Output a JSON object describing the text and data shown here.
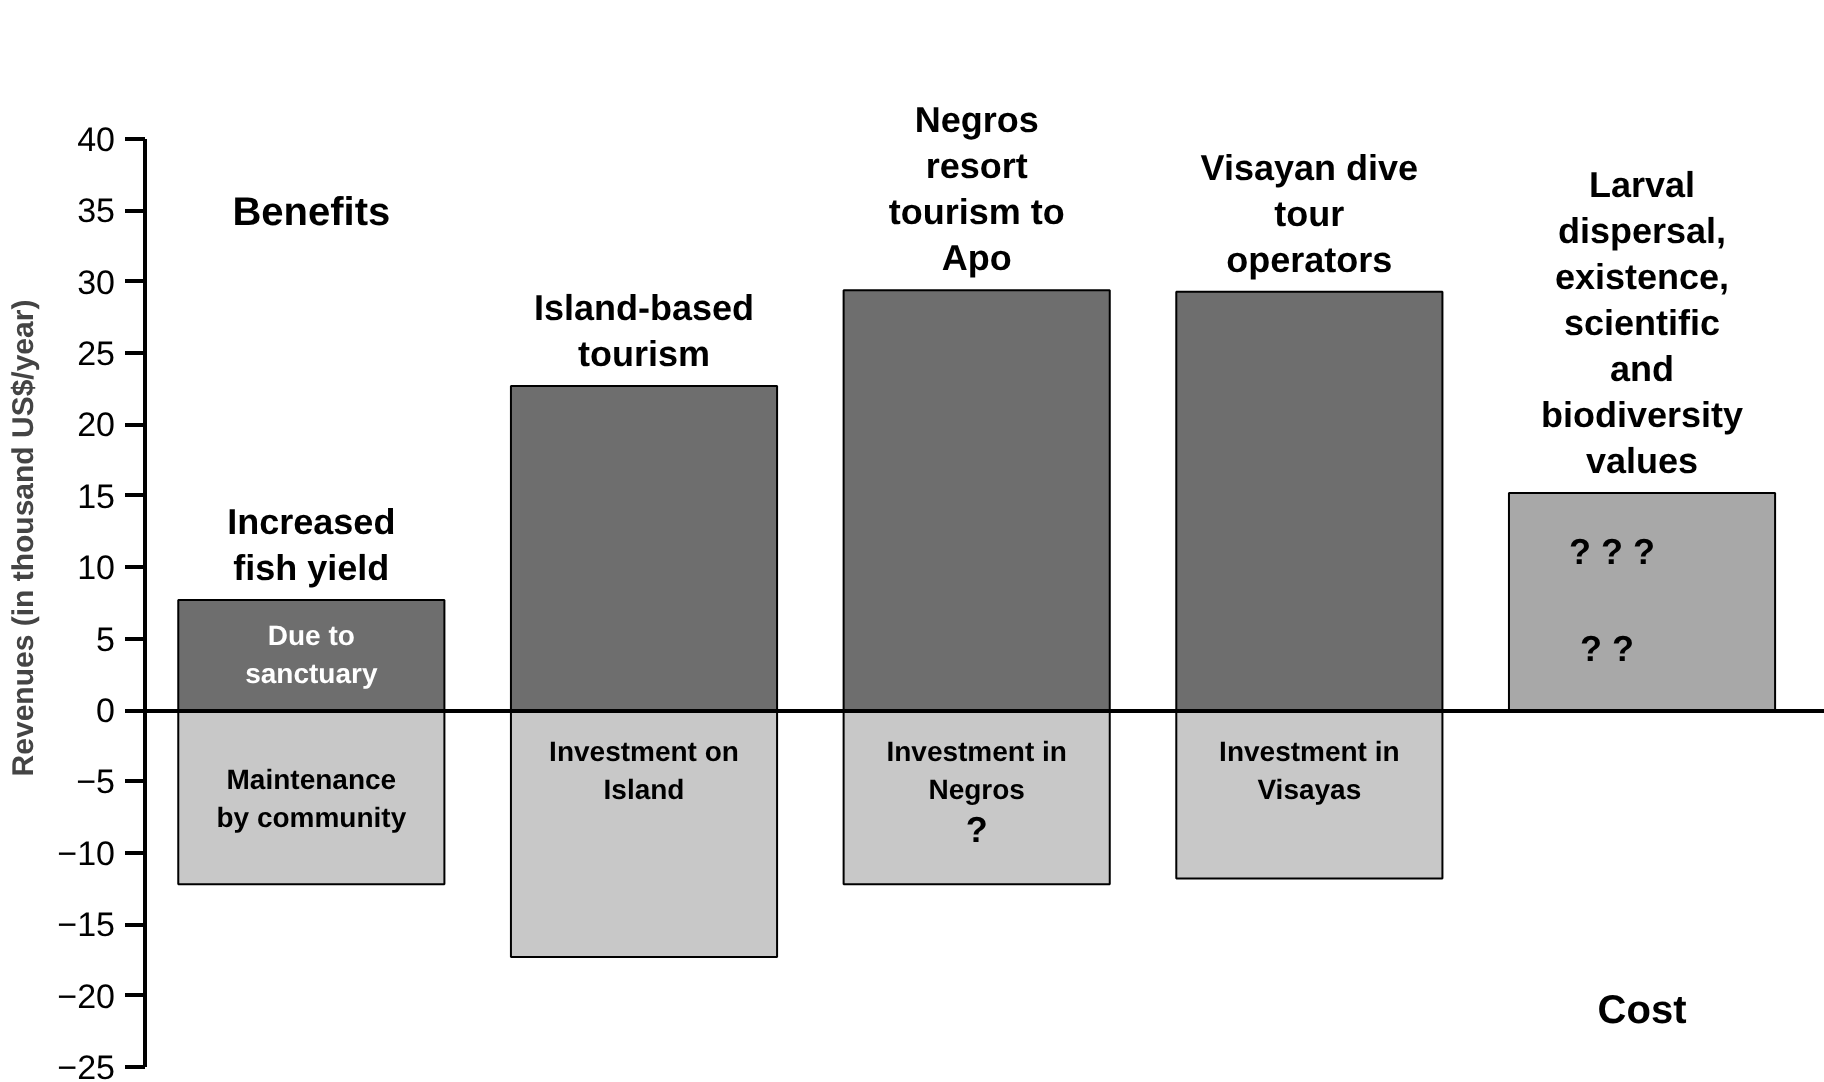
{
  "chart_data": {
    "type": "bar",
    "ylabel": "Revenues (in thousand US$/year)",
    "categories": [
      "Increased fish yield",
      "Island-based tourism",
      "Negros resort tourism to Apo",
      "Visayan dive tour operators",
      "Larval dispersal, existence, scientific and biodiversity values"
    ],
    "series": [
      {
        "colors": [
          "#6e6e6e",
          "#6e6e6e",
          "#6e6e6e",
          "#6e6e6e",
          "#a8a8a8"
        ],
        "values": [
          7.7,
          22.7,
          29.4,
          29.3,
          15.2
        ]
      },
      {
        "color": "#c8c8c8",
        "values": [
          -12.2,
          -17.3,
          -12.2,
          -11.8,
          null
        ]
      }
    ],
    "ylim": [
      -25,
      40
    ],
    "yticks": [
      40,
      35,
      30,
      25,
      20,
      15,
      10,
      5,
      0,
      -5,
      -10,
      -15,
      -20,
      -25
    ],
    "stacked": true,
    "tick_labels": "y",
    "annotations": [
      "Benefits",
      "Cost",
      "Due to sanctuary",
      "Maintenance by community",
      "Investment on Island",
      "Investment in Negros",
      "?",
      "Investment in Visayas",
      "?    ?    ?",
      "?        ?"
    ]
  }
}
